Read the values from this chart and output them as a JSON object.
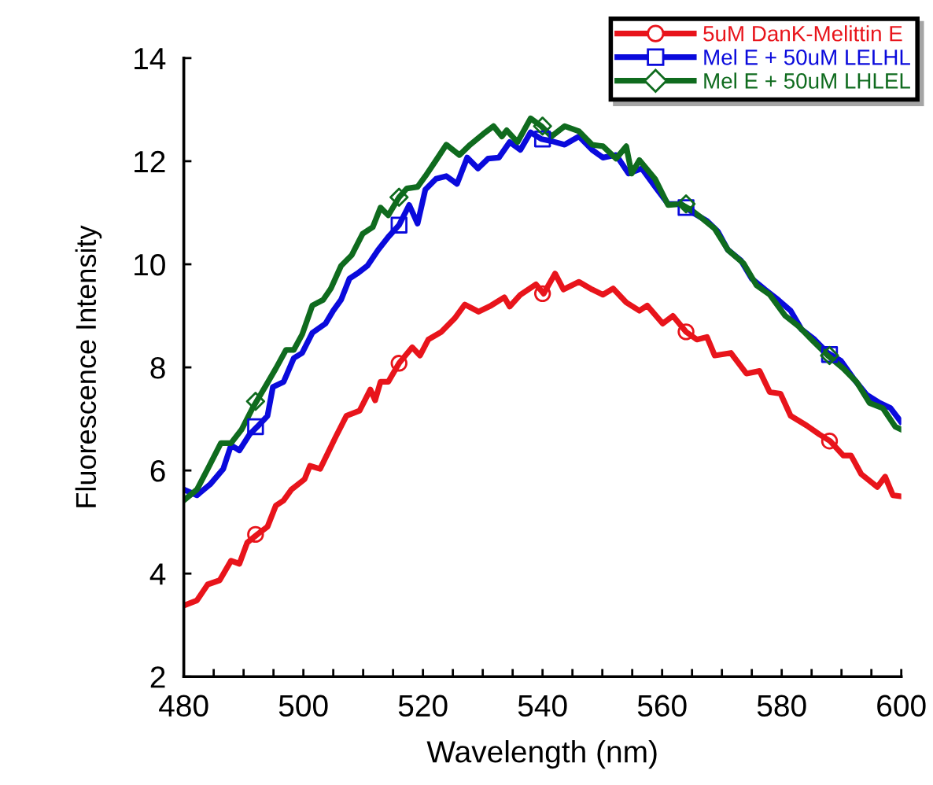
{
  "chart_data": {
    "type": "line",
    "xlabel": "Wavelength (nm)",
    "ylabel": "Fluorescence Intensity",
    "xlim": [
      480,
      600
    ],
    "ylim": [
      2,
      14
    ],
    "xticks": [
      480,
      {
        "value": 485,
        "label": null
      },
      {
        "value": 490,
        "label": null
      },
      {
        "value": 495,
        "label": null
      },
      500,
      {
        "value": 505,
        "label": null
      },
      {
        "value": 510,
        "label": null
      },
      {
        "value": 515,
        "label": null
      },
      520,
      {
        "value": 525,
        "label": null
      },
      {
        "value": 530,
        "label": null
      },
      {
        "value": 535,
        "label": null
      },
      540,
      {
        "value": 545,
        "label": null
      },
      {
        "value": 550,
        "label": null
      },
      {
        "value": 555,
        "label": null
      },
      560,
      {
        "value": 565,
        "label": null
      },
      {
        "value": 570,
        "label": null
      },
      {
        "value": 575,
        "label": null
      },
      580,
      {
        "value": 585,
        "label": null
      },
      {
        "value": 590,
        "label": null
      },
      {
        "value": 595,
        "label": null
      },
      600
    ],
    "yticks": [
      2,
      4,
      6,
      8,
      10,
      12,
      14
    ],
    "grid": false,
    "legend": "top right",
    "line_style": "solid",
    "series": [
      {
        "name": "5uM DanK-Melittin E",
        "color": "#e8141b",
        "x": [
          480,
          482.2,
          484,
          486,
          487.9,
          489.3,
          490.6,
          492.3,
          494,
          495.4,
          496.7,
          498,
          500.2,
          501.1,
          502.8,
          504.1,
          505.4,
          507.2,
          509.4,
          511.2,
          512,
          512.9,
          514.2,
          516,
          518.2,
          519.5,
          520.9,
          523.1,
          525.3,
          527,
          529.3,
          531.4,
          533.6,
          534.5,
          536.3,
          538.9,
          540.2,
          542.1,
          543.5,
          546.1,
          548.3,
          550.1,
          551.8,
          554,
          556.2,
          557.5,
          560.1,
          561.8,
          564,
          565.8,
          567.5,
          568.8,
          571.5,
          574.1,
          576.3,
          578,
          579.8,
          581.5,
          584.2,
          586.3,
          588.1,
          590.3,
          591.6,
          593.3,
          596,
          597.3,
          598.6,
          599.9
        ],
        "values": [
          3.38,
          3.48,
          3.79,
          3.87,
          4.25,
          4.19,
          4.6,
          4.76,
          4.91,
          5.32,
          5.42,
          5.63,
          5.83,
          6.09,
          6.03,
          6.34,
          6.65,
          7.06,
          7.16,
          7.57,
          7.36,
          7.72,
          7.72,
          8.08,
          8.39,
          8.23,
          8.54,
          8.69,
          8.95,
          9.22,
          9.08,
          9.2,
          9.36,
          9.18,
          9.41,
          9.61,
          9.43,
          9.82,
          9.51,
          9.66,
          9.51,
          9.41,
          9.53,
          9.26,
          9.1,
          9.2,
          8.85,
          9.0,
          8.69,
          8.54,
          8.59,
          8.23,
          8.28,
          7.88,
          7.93,
          7.52,
          7.49,
          7.06,
          6.87,
          6.7,
          6.57,
          6.29,
          6.29,
          5.93,
          5.68,
          5.88,
          5.52,
          5.5
        ]
      },
      {
        "name": "Mel E + 50uM LELHL",
        "color": "#0a0adc",
        "x": [
          480,
          482.2,
          484.4,
          486.6,
          487.9,
          489.3,
          491,
          492.3,
          494,
          494.9,
          496.7,
          498.4,
          499.8,
          501.5,
          503.7,
          505,
          506.3,
          507.7,
          509,
          510.7,
          512.5,
          514.2,
          516,
          517.7,
          519.1,
          520.4,
          522.2,
          523.9,
          525.7,
          527.4,
          529.2,
          530.9,
          532.7,
          534.5,
          536.3,
          538,
          539.8,
          541.5,
          543.7,
          546.1,
          548.3,
          550.1,
          552.3,
          554.4,
          556.6,
          558.8,
          561,
          563.1,
          565.3,
          567.5,
          569.3,
          571,
          573.2,
          575,
          577.2,
          579.4,
          581.5,
          583.3,
          585.5,
          587.7,
          589.9,
          592.1,
          594.2,
          596.4,
          598.2,
          599.9
        ],
        "values": [
          5.63,
          5.52,
          5.73,
          6.03,
          6.49,
          6.39,
          6.7,
          6.85,
          7.06,
          7.62,
          7.72,
          8.18,
          8.28,
          8.67,
          8.85,
          9.1,
          9.31,
          9.72,
          9.82,
          9.97,
          10.28,
          10.53,
          10.76,
          11.15,
          10.79,
          11.45,
          11.66,
          11.71,
          11.56,
          12.07,
          11.86,
          12.05,
          12.07,
          12.37,
          12.22,
          12.56,
          12.43,
          12.39,
          12.32,
          12.48,
          12.22,
          12.07,
          12.12,
          11.76,
          11.86,
          11.51,
          11.17,
          11.17,
          10.99,
          10.84,
          10.64,
          10.28,
          10.07,
          9.72,
          9.51,
          9.31,
          9.1,
          8.74,
          8.54,
          8.28,
          8.13,
          7.77,
          7.47,
          7.31,
          7.21,
          6.95
        ]
      },
      {
        "name": "Mel E + 50uM LHLEL",
        "color": "#0f6b1e",
        "x": [
          480,
          482.2,
          484,
          486.2,
          487.9,
          489.7,
          491.5,
          493.6,
          495.4,
          497.1,
          498.4,
          499.8,
          501.5,
          503.3,
          504.6,
          506.3,
          508.1,
          509.9,
          511.6,
          512.9,
          514.2,
          516,
          517.3,
          519.1,
          520.4,
          522.2,
          523.9,
          526.1,
          527.9,
          530.1,
          531.8,
          533.2,
          534,
          535.8,
          538,
          539.8,
          541.5,
          543.7,
          546.1,
          548.3,
          550.1,
          552.3,
          554,
          554.9,
          556.2,
          558.8,
          561,
          563.1,
          564.9,
          566.7,
          568.8,
          571,
          573.6,
          575.8,
          578,
          580.6,
          582.8,
          585,
          587.7,
          590.3,
          592.5,
          594.7,
          596.9,
          599,
          599.9
        ],
        "values": [
          5.42,
          5.63,
          6.03,
          6.53,
          6.53,
          6.8,
          7.21,
          7.62,
          7.98,
          8.34,
          8.34,
          8.64,
          9.2,
          9.31,
          9.53,
          9.97,
          10.18,
          10.59,
          10.72,
          11.1,
          10.95,
          11.3,
          11.47,
          11.5,
          11.71,
          12.02,
          12.32,
          12.12,
          12.32,
          12.53,
          12.68,
          12.48,
          12.6,
          12.37,
          12.83,
          12.68,
          12.48,
          12.68,
          12.58,
          12.32,
          12.29,
          12.05,
          12.29,
          11.76,
          12.02,
          11.66,
          11.15,
          11.17,
          11.05,
          10.89,
          10.69,
          10.28,
          10.02,
          9.59,
          9.41,
          9.0,
          8.8,
          8.54,
          8.23,
          7.98,
          7.72,
          7.31,
          7.21,
          6.85,
          6.8
        ]
      },
      {
        "type": "scatter",
        "color": "#e8141b",
        "marker": "circle",
        "x": [
          492,
          516,
          540,
          564,
          588
        ],
        "values": [
          4.76,
          8.08,
          9.43,
          8.69,
          6.57
        ]
      },
      {
        "type": "scatter",
        "color": "#0a0adc",
        "marker": "square",
        "x": [
          492,
          516,
          540,
          564,
          588
        ],
        "values": [
          6.85,
          10.76,
          12.43,
          11.1,
          8.25
        ]
      },
      {
        "type": "scatter",
        "color": "#0f6b1e",
        "marker": "diamond",
        "x": [
          492,
          516,
          540,
          564,
          588
        ],
        "values": [
          7.34,
          11.3,
          12.68,
          11.17,
          8.23
        ]
      }
    ]
  }
}
